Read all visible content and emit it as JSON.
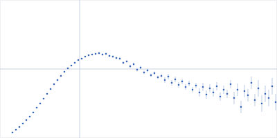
{
  "chart_data": {
    "type": "scatter",
    "tick_labels": false,
    "grid": true,
    "xlim": [
      0,
      400
    ],
    "ylim": [
      0,
      200
    ],
    "xticks": [
      115
    ],
    "yticks": [
      100
    ],
    "x": [
      18,
      23,
      28,
      33,
      38,
      43,
      48,
      53,
      58,
      63,
      68,
      73,
      78,
      83,
      88,
      93,
      98,
      103,
      108,
      113,
      118,
      123,
      128,
      133,
      138,
      143,
      148,
      153,
      158,
      163,
      168,
      173,
      178,
      183,
      188,
      193,
      198,
      203,
      208,
      213,
      218,
      223,
      228,
      233,
      238,
      243,
      248,
      253,
      258,
      263,
      268,
      273,
      278,
      283,
      288,
      293,
      298,
      303,
      308,
      313,
      318,
      323,
      328,
      333,
      338,
      343,
      348,
      353,
      358,
      363,
      368,
      373,
      378,
      383,
      388,
      393,
      398
    ],
    "series": [
      {
        "color": "#3a66b8",
        "marker": "circle",
        "values": [
          8,
          12,
          16,
          21,
          26,
          31,
          37,
          44,
          50,
          57,
          64,
          71,
          78,
          84,
          90,
          96,
          101,
          105,
          109,
          113,
          115,
          118,
          120,
          121,
          122,
          123,
          121,
          122,
          119,
          118,
          116,
          115,
          109,
          111,
          104,
          107,
          99,
          102,
          95,
          98,
          91,
          94,
          88,
          90,
          84,
          89,
          80,
          85,
          77,
          82,
          74,
          79,
          70,
          76,
          66,
          74,
          63,
          72,
          66,
          75,
          60,
          70,
          64,
          78,
          58,
          70,
          45,
          68,
          62,
          80,
          55,
          72,
          50,
          64,
          58,
          75,
          52
        ],
        "errors": [
          0.5,
          0.5,
          0.5,
          0.5,
          0.5,
          0.5,
          0.5,
          0.5,
          0.5,
          0.5,
          0.5,
          0.5,
          1,
          1,
          1,
          1,
          1,
          1,
          1,
          1,
          1,
          1,
          1,
          1,
          1.5,
          1.5,
          1.5,
          1.5,
          1.5,
          1.5,
          1.5,
          1.5,
          1.5,
          1.5,
          2.5,
          2.5,
          2.5,
          2.5,
          2.5,
          2.5,
          2.5,
          2.5,
          2.5,
          2.5,
          4,
          4,
          4,
          4,
          4,
          4,
          4,
          4,
          4,
          4,
          6,
          6,
          6,
          6,
          6,
          6,
          6,
          6,
          6,
          6,
          9,
          9,
          9,
          9,
          9,
          9,
          9,
          12,
          12,
          12,
          12,
          12,
          12
        ]
      }
    ]
  }
}
